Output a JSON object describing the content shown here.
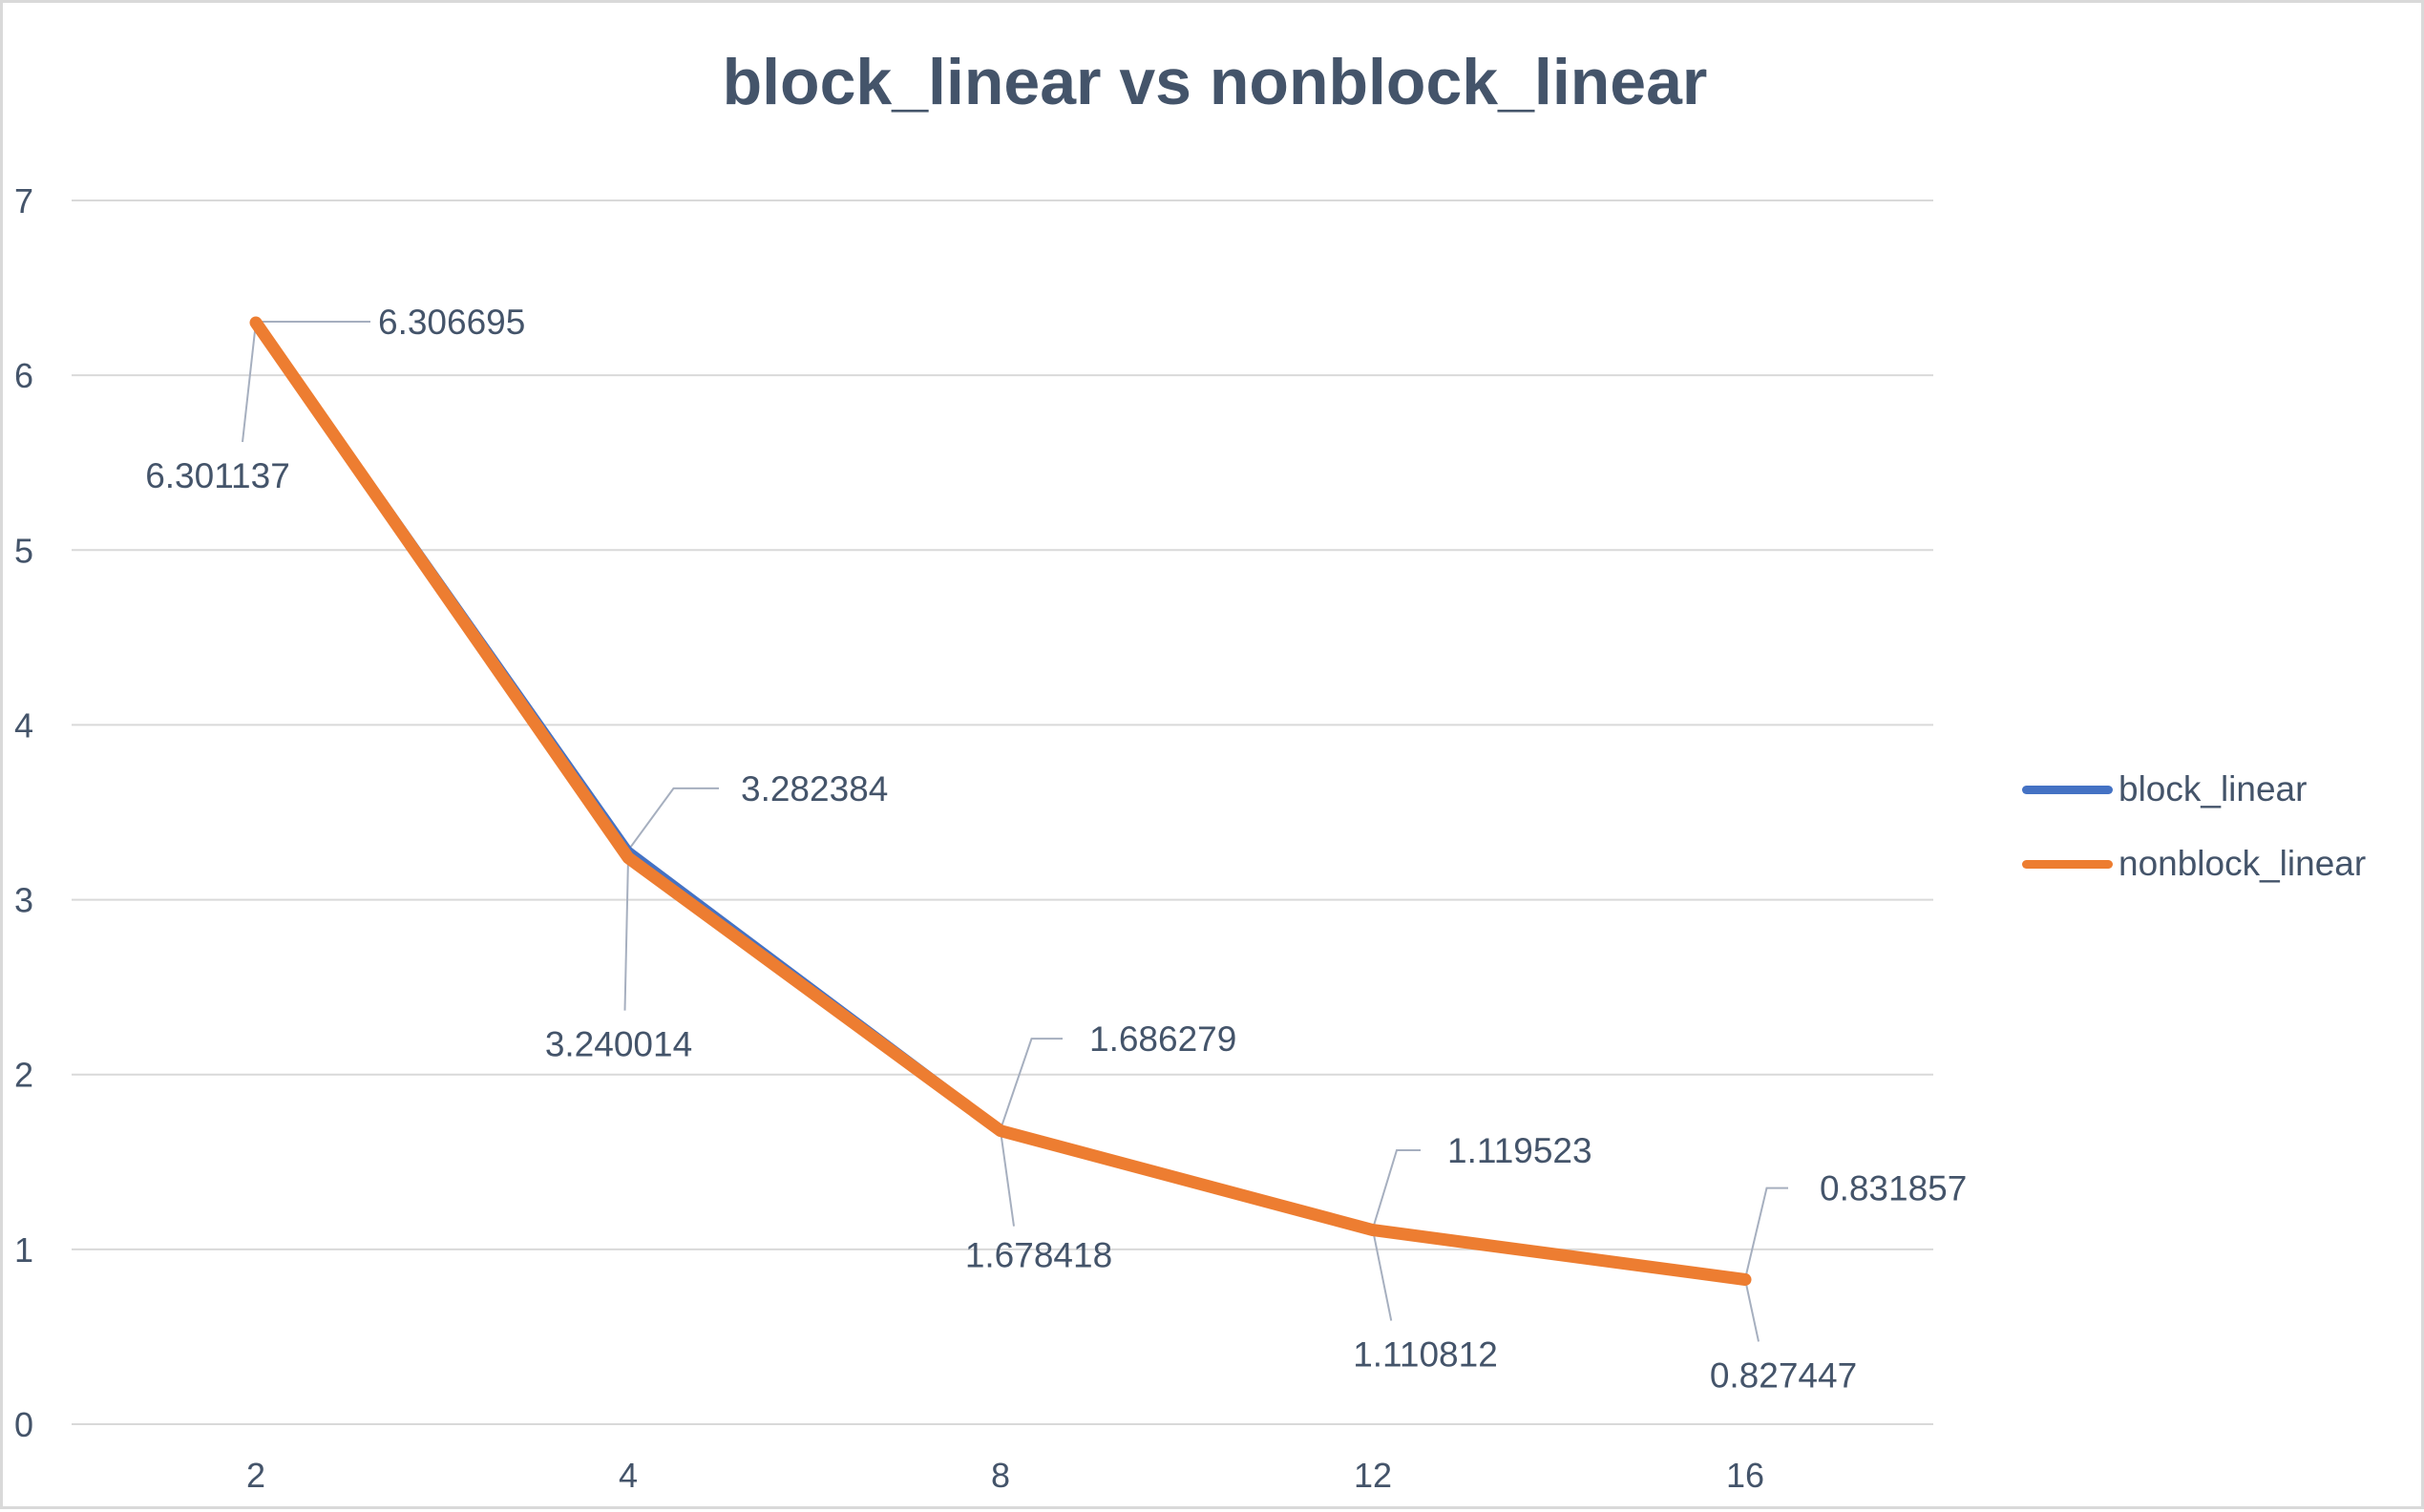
{
  "chart_data": {
    "type": "line",
    "title": "block_linear vs nonblock_linear",
    "xlabel": "",
    "ylabel": "",
    "categories": [
      "2",
      "4",
      "8",
      "12",
      "16"
    ],
    "ylim": [
      0,
      7
    ],
    "yticks": [
      "0",
      "1",
      "2",
      "3",
      "4",
      "5",
      "6",
      "7"
    ],
    "grid": true,
    "legend_position": "right",
    "series": [
      {
        "name": "block_linear",
        "color": "#4472c4",
        "values": [
          6.306695,
          3.282384,
          1.686279,
          1.119523,
          0.831857
        ],
        "labels": [
          "6.306695",
          "3.282384",
          "1.686279",
          "1.119523",
          "0.831857"
        ]
      },
      {
        "name": "nonblock_linear",
        "color": "#ed7d31",
        "values": [
          6.301137,
          3.240014,
          1.678418,
          1.110812,
          0.827447
        ],
        "labels": [
          "6.301137",
          "3.240014",
          "1.678418",
          "1.110812",
          "0.827447"
        ]
      }
    ]
  }
}
